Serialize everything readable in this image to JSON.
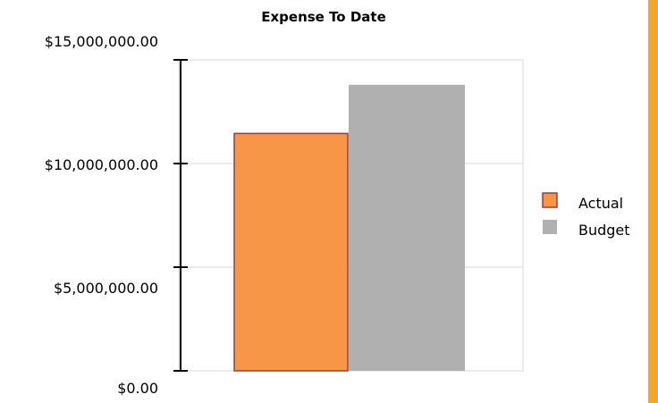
{
  "colors": {
    "actual_fill": "#F79646",
    "actual_stroke": "#A13A3A",
    "budget_fill": "#B0B0B0",
    "grid": "#D9D9D9",
    "axis": "#000000",
    "accent_bar": "#F5A623"
  },
  "chart_data": {
    "type": "bar",
    "title": "Expense To Date",
    "xlabel": "",
    "ylabel": "",
    "ylim": [
      0,
      15000000
    ],
    "yticks": [
      0,
      5000000,
      10000000,
      15000000
    ],
    "ytick_labels": [
      "$0.00",
      "$5,000,000.00",
      "$10,000,000.00",
      "$15,000,000.00"
    ],
    "grid": true,
    "legend_position": "right",
    "series": [
      {
        "name": "Actual",
        "values": [
          11450000
        ]
      },
      {
        "name": "Budget",
        "values": [
          13800000
        ]
      }
    ]
  }
}
